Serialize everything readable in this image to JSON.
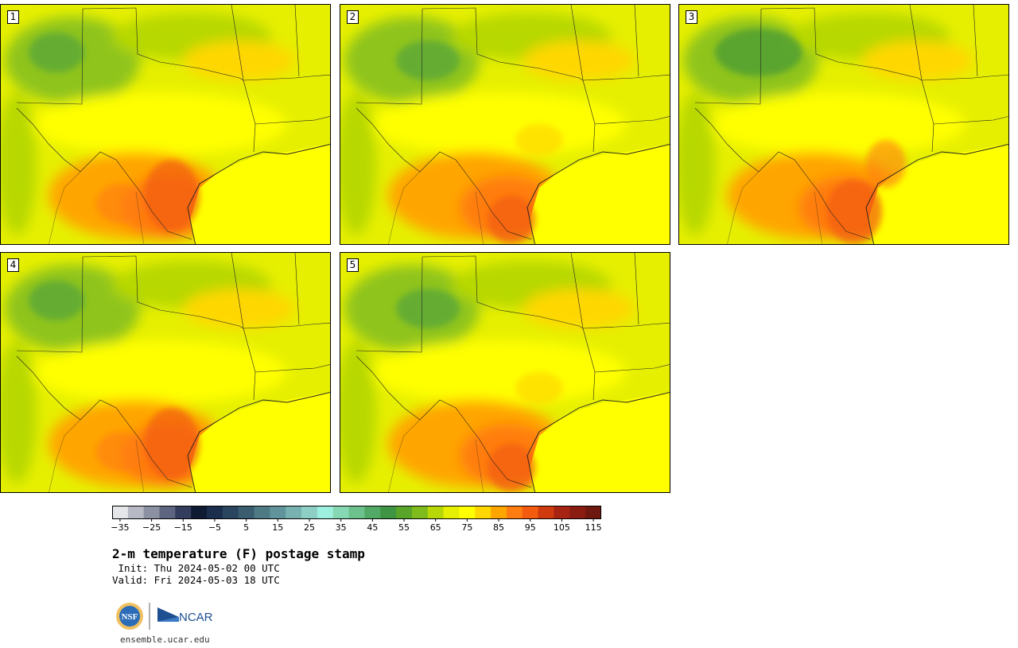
{
  "panels": [
    {
      "label": "1"
    },
    {
      "label": "2"
    },
    {
      "label": "3"
    },
    {
      "label": "4"
    },
    {
      "label": "5"
    }
  ],
  "colorbar": {
    "ticks": [
      "−35",
      "−25",
      "−15",
      "−5",
      "5",
      "15",
      "25",
      "35",
      "45",
      "55",
      "65",
      "75",
      "85",
      "95",
      "105",
      "115"
    ],
    "colors": [
      "#e4e6ea",
      "#b7b9c4",
      "#8b90a3",
      "#5d6580",
      "#343d5e",
      "#0f1a33",
      "#1c2e4d",
      "#2a4560",
      "#3a5d70",
      "#4e7a84",
      "#60939a",
      "#77b1b0",
      "#8dcfc5",
      "#9ef0de",
      "#86d8b4",
      "#6cc18d",
      "#52a865",
      "#3f9544",
      "#58a52a",
      "#7fbb1c",
      "#b7d806",
      "#e6ef00",
      "#ffff00",
      "#ffd700",
      "#ffa500",
      "#ff7d10",
      "#f25b10",
      "#cf3a0e",
      "#a72312",
      "#8a1c12",
      "#6e1810"
    ]
  },
  "title": "2-m temperature (F) postage stamp",
  "init": " Init: Thu 2024-05-02 00 UTC",
  "valid": "Valid: Fri 2024-05-03 18 UTC",
  "logos": {
    "nsf": "NSF",
    "ncar": "NCAR"
  },
  "site": "ensemble.ucar.edu"
}
